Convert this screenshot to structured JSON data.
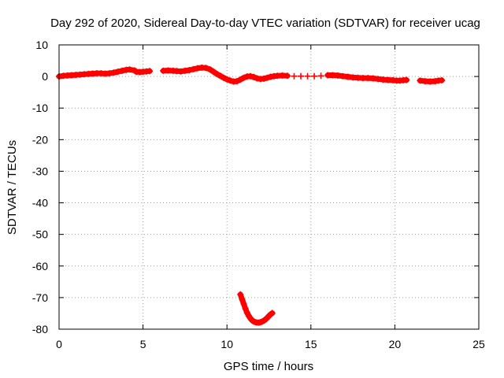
{
  "chart_data": {
    "type": "scatter",
    "title": "Day 292 of 2020, Sidereal Day-to-day VTEC variation (SDTVAR) for receiver ucag",
    "xlabel": "GPS time / hours",
    "ylabel": "SDTVAR / TECUs",
    "xlim": [
      0,
      25
    ],
    "ylim": [
      -80,
      10
    ],
    "xticks": [
      0,
      5,
      10,
      15,
      20,
      25
    ],
    "yticks": [
      10,
      0,
      -10,
      -20,
      -30,
      -40,
      -50,
      -60,
      -70,
      -80
    ],
    "grid": true,
    "marker": "plus",
    "color": "#ff0000",
    "series": [
      {
        "name": "SDTVAR",
        "x": [
          0.0,
          0.25,
          0.5,
          0.75,
          1.0,
          1.25,
          1.5,
          1.75,
          2.0,
          2.25,
          2.5,
          2.75,
          3.0,
          3.25,
          3.5,
          3.75,
          4.0,
          4.2,
          4.5,
          4.6,
          4.8,
          5.0,
          5.2,
          5.4,
          6.2,
          6.5,
          6.8,
          7.0,
          7.25,
          7.5,
          7.75,
          8.0,
          8.25,
          8.5,
          8.75,
          9.0,
          9.2,
          9.4,
          9.6,
          9.8,
          10.0,
          10.2,
          10.4,
          10.6,
          10.8,
          11.0,
          11.2,
          11.4,
          11.6,
          11.8,
          12.0,
          12.2,
          12.4,
          12.6,
          12.8,
          13.0,
          13.3,
          13.6,
          14.0,
          14.4,
          14.8,
          15.2,
          15.6,
          16.0,
          16.3,
          16.6,
          16.9,
          17.2,
          17.5,
          17.8,
          18.1,
          18.4,
          18.7,
          19.0,
          19.3,
          19.6,
          19.9,
          20.1,
          20.3,
          20.5,
          20.7,
          21.5,
          21.8,
          22.1,
          22.4,
          22.6,
          22.8,
          10.8,
          10.9,
          11.0,
          11.1,
          11.2,
          11.3,
          11.4,
          11.5,
          11.6,
          11.7,
          11.8,
          11.9,
          12.0,
          12.1,
          12.2,
          12.3,
          12.4,
          12.5,
          12.6,
          12.7
        ],
        "y": [
          0.0,
          0.2,
          0.3,
          0.4,
          0.5,
          0.6,
          0.7,
          0.8,
          0.9,
          1.0,
          1.0,
          0.9,
          1.0,
          1.2,
          1.5,
          1.8,
          2.1,
          2.2,
          1.9,
          1.5,
          1.4,
          1.5,
          1.6,
          1.7,
          1.8,
          1.9,
          1.8,
          1.7,
          1.6,
          1.8,
          2.0,
          2.3,
          2.6,
          2.8,
          2.7,
          2.2,
          1.5,
          0.8,
          0.2,
          -0.4,
          -0.9,
          -1.3,
          -1.6,
          -1.5,
          -1.0,
          -0.4,
          0.0,
          0.1,
          -0.2,
          -0.6,
          -0.8,
          -0.7,
          -0.4,
          -0.1,
          0.1,
          0.2,
          0.3,
          0.2,
          0.1,
          0.1,
          0.1,
          0.1,
          0.2,
          0.4,
          0.4,
          0.3,
          0.1,
          -0.1,
          -0.3,
          -0.4,
          -0.5,
          -0.5,
          -0.6,
          -0.8,
          -1.0,
          -1.1,
          -1.2,
          -1.3,
          -1.3,
          -1.2,
          -1.1,
          -1.3,
          -1.5,
          -1.6,
          -1.5,
          -1.3,
          -1.2,
          -69.0,
          -70.5,
          -72.0,
          -73.5,
          -74.8,
          -75.8,
          -76.6,
          -77.2,
          -77.6,
          -77.8,
          -77.9,
          -77.9,
          -77.8,
          -77.6,
          -77.3,
          -76.9,
          -76.4,
          -75.8,
          -75.3,
          -74.9
        ]
      }
    ]
  }
}
